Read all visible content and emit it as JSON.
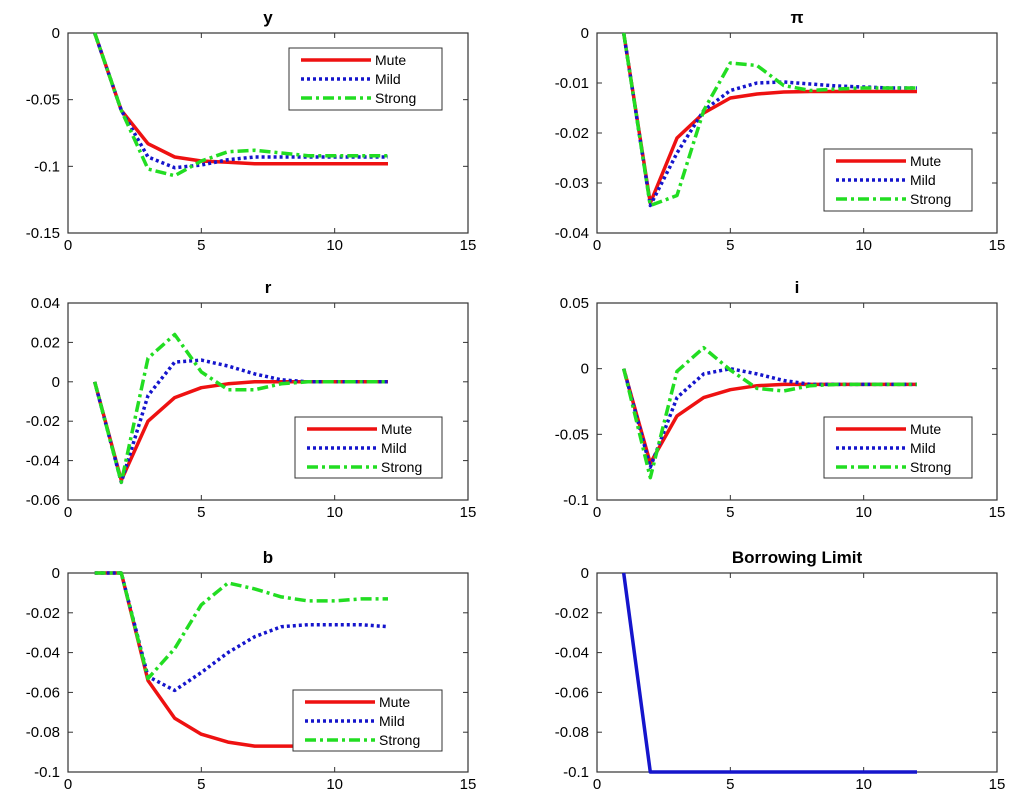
{
  "chart_data": [
    {
      "type": "line",
      "title": "y",
      "xlim": [
        0,
        15
      ],
      "ylim": [
        -0.15,
        0
      ],
      "xticks": [
        "0",
        "5",
        "10",
        "15"
      ],
      "yticks": [
        "0",
        "-0.05",
        "-0.1",
        "-0.15"
      ],
      "legend": "top-right",
      "series": [
        {
          "name": "Mute",
          "color": "#ee1111",
          "style": "solid",
          "x": [
            1,
            2,
            3,
            4,
            5,
            6,
            7,
            8,
            9,
            10,
            11,
            12
          ],
          "y": [
            0,
            -0.058,
            -0.083,
            -0.093,
            -0.096,
            -0.097,
            -0.098,
            -0.098,
            -0.098,
            -0.098,
            -0.098,
            -0.098
          ]
        },
        {
          "name": "Mild",
          "color": "#1515cc",
          "style": "dotted",
          "x": [
            1,
            2,
            3,
            4,
            5,
            6,
            7,
            8,
            9,
            10,
            11,
            12
          ],
          "y": [
            0,
            -0.058,
            -0.093,
            -0.101,
            -0.099,
            -0.095,
            -0.093,
            -0.093,
            -0.093,
            -0.093,
            -0.093,
            -0.093
          ]
        },
        {
          "name": "Strong",
          "color": "#22dd22",
          "style": "dashdot",
          "x": [
            1,
            2,
            3,
            4,
            5,
            6,
            7,
            8,
            9,
            10,
            11,
            12
          ],
          "y": [
            0,
            -0.058,
            -0.102,
            -0.107,
            -0.096,
            -0.089,
            -0.088,
            -0.09,
            -0.092,
            -0.092,
            -0.092,
            -0.092
          ]
        }
      ]
    },
    {
      "type": "line",
      "title": "π",
      "xlim": [
        0,
        15
      ],
      "ylim": [
        -0.04,
        0
      ],
      "xticks": [
        "0",
        "5",
        "10",
        "15"
      ],
      "yticks": [
        "0",
        "-0.01",
        "-0.02",
        "-0.03",
        "-0.04"
      ],
      "legend": "bottom-right",
      "series": [
        {
          "name": "Mute",
          "color": "#ee1111",
          "style": "solid",
          "x": [
            1,
            2,
            3,
            4,
            5,
            6,
            7,
            8,
            9,
            10,
            11,
            12
          ],
          "y": [
            0,
            -0.034,
            -0.021,
            -0.016,
            -0.013,
            -0.0122,
            -0.0118,
            -0.0117,
            -0.0117,
            -0.0117,
            -0.0117,
            -0.0117
          ]
        },
        {
          "name": "Mild",
          "color": "#1515cc",
          "style": "dotted",
          "x": [
            1,
            2,
            3,
            4,
            5,
            6,
            7,
            8,
            9,
            10,
            11,
            12
          ],
          "y": [
            0,
            -0.0345,
            -0.024,
            -0.0155,
            -0.0115,
            -0.01,
            -0.0098,
            -0.0102,
            -0.0106,
            -0.0108,
            -0.011,
            -0.011
          ]
        },
        {
          "name": "Strong",
          "color": "#22dd22",
          "style": "dashdot",
          "x": [
            1,
            2,
            3,
            4,
            5,
            6,
            7,
            8,
            9,
            10,
            11,
            12
          ],
          "y": [
            0,
            -0.0345,
            -0.0325,
            -0.0155,
            -0.006,
            -0.0065,
            -0.0105,
            -0.0115,
            -0.0112,
            -0.011,
            -0.011,
            -0.011
          ]
        }
      ]
    },
    {
      "type": "line",
      "title": "r",
      "xlim": [
        0,
        15
      ],
      "ylim": [
        -0.06,
        0.04
      ],
      "xticks": [
        "0",
        "5",
        "10",
        "15"
      ],
      "yticks": [
        "0.04",
        "0.02",
        "0",
        "-0.02",
        "-0.04",
        "-0.06"
      ],
      "legend": "bottom-right",
      "series": [
        {
          "name": "Mute",
          "color": "#ee1111",
          "style": "solid",
          "x": [
            1,
            2,
            3,
            4,
            5,
            6,
            7,
            8,
            9,
            10,
            11,
            12
          ],
          "y": [
            0,
            -0.05,
            -0.02,
            -0.008,
            -0.003,
            -0.001,
            0,
            0,
            0,
            0,
            0,
            0
          ]
        },
        {
          "name": "Mild",
          "color": "#1515cc",
          "style": "dotted",
          "x": [
            1,
            2,
            3,
            4,
            5,
            6,
            7,
            8,
            9,
            10,
            11,
            12
          ],
          "y": [
            0,
            -0.051,
            -0.007,
            0.01,
            0.011,
            0.008,
            0.004,
            0.001,
            0,
            0,
            0,
            0
          ]
        },
        {
          "name": "Strong",
          "color": "#22dd22",
          "style": "dashdot",
          "x": [
            1,
            2,
            3,
            4,
            5,
            6,
            7,
            8,
            9,
            10,
            11,
            12
          ],
          "y": [
            0,
            -0.051,
            0.012,
            0.024,
            0.005,
            -0.004,
            -0.004,
            -0.001,
            0,
            0,
            0,
            0
          ]
        }
      ]
    },
    {
      "type": "line",
      "title": "i",
      "xlim": [
        0,
        15
      ],
      "ylim": [
        -0.1,
        0.05
      ],
      "xticks": [
        "0",
        "5",
        "10",
        "15"
      ],
      "yticks": [
        "0.05",
        "0",
        "-0.05",
        "-0.1"
      ],
      "legend": "bottom-right",
      "series": [
        {
          "name": "Mute",
          "color": "#ee1111",
          "style": "solid",
          "x": [
            1,
            2,
            3,
            4,
            5,
            6,
            7,
            8,
            9,
            10,
            11,
            12
          ],
          "y": [
            0,
            -0.072,
            -0.036,
            -0.022,
            -0.016,
            -0.013,
            -0.012,
            -0.012,
            -0.012,
            -0.012,
            -0.012,
            -0.012
          ]
        },
        {
          "name": "Mild",
          "color": "#1515cc",
          "style": "dotted",
          "x": [
            1,
            2,
            3,
            4,
            5,
            6,
            7,
            8,
            9,
            10,
            11,
            12
          ],
          "y": [
            0,
            -0.075,
            -0.022,
            -0.004,
            0,
            -0.004,
            -0.009,
            -0.012,
            -0.012,
            -0.012,
            -0.012,
            -0.012
          ]
        },
        {
          "name": "Strong",
          "color": "#22dd22",
          "style": "dashdot",
          "x": [
            1,
            2,
            3,
            4,
            5,
            6,
            7,
            8,
            9,
            10,
            11,
            12
          ],
          "y": [
            0,
            -0.083,
            -0.002,
            0.016,
            -0.001,
            -0.015,
            -0.017,
            -0.013,
            -0.012,
            -0.012,
            -0.012,
            -0.012
          ]
        }
      ]
    },
    {
      "type": "line",
      "title": "b",
      "xlim": [
        0,
        15
      ],
      "ylim": [
        -0.1,
        0
      ],
      "xticks": [
        "0",
        "5",
        "10",
        "15"
      ],
      "yticks": [
        "0",
        "-0.02",
        "-0.04",
        "-0.06",
        "-0.08",
        "-0.1"
      ],
      "legend": "bottom-right",
      "series": [
        {
          "name": "Mute",
          "color": "#ee1111",
          "style": "solid",
          "x": [
            1,
            2,
            3,
            4,
            5,
            6,
            7,
            8,
            9,
            10,
            11,
            12
          ],
          "y": [
            0,
            0,
            -0.054,
            -0.073,
            -0.081,
            -0.085,
            -0.087,
            -0.087,
            -0.087,
            -0.087,
            -0.087,
            -0.087
          ]
        },
        {
          "name": "Mild",
          "color": "#1515cc",
          "style": "dotted",
          "x": [
            1,
            2,
            3,
            4,
            5,
            6,
            7,
            8,
            9,
            10,
            11,
            12
          ],
          "y": [
            0,
            0,
            -0.052,
            -0.059,
            -0.05,
            -0.04,
            -0.032,
            -0.027,
            -0.026,
            -0.026,
            -0.026,
            -0.027
          ]
        },
        {
          "name": "Strong",
          "color": "#22dd22",
          "style": "dashdot",
          "x": [
            1,
            2,
            3,
            4,
            5,
            6,
            7,
            8,
            9,
            10,
            11,
            12
          ],
          "y": [
            0,
            0,
            -0.053,
            -0.038,
            -0.016,
            -0.005,
            -0.008,
            -0.012,
            -0.014,
            -0.014,
            -0.013,
            -0.013
          ]
        }
      ]
    },
    {
      "type": "line",
      "title": "Borrowing Limit",
      "xlim": [
        0,
        15
      ],
      "ylim": [
        -0.1,
        0
      ],
      "xticks": [
        "0",
        "5",
        "10",
        "15"
      ],
      "yticks": [
        "0",
        "-0.02",
        "-0.04",
        "-0.06",
        "-0.08",
        "-0.1"
      ],
      "legend": "none",
      "series": [
        {
          "name": "",
          "color": "#1515cc",
          "style": "solid",
          "x": [
            1,
            2,
            3,
            4,
            5,
            6,
            7,
            8,
            9,
            10,
            11,
            12
          ],
          "y": [
            0,
            -0.1,
            -0.1,
            -0.1,
            -0.1,
            -0.1,
            -0.1,
            -0.1,
            -0.1,
            -0.1,
            -0.1,
            -0.1
          ]
        }
      ]
    }
  ]
}
